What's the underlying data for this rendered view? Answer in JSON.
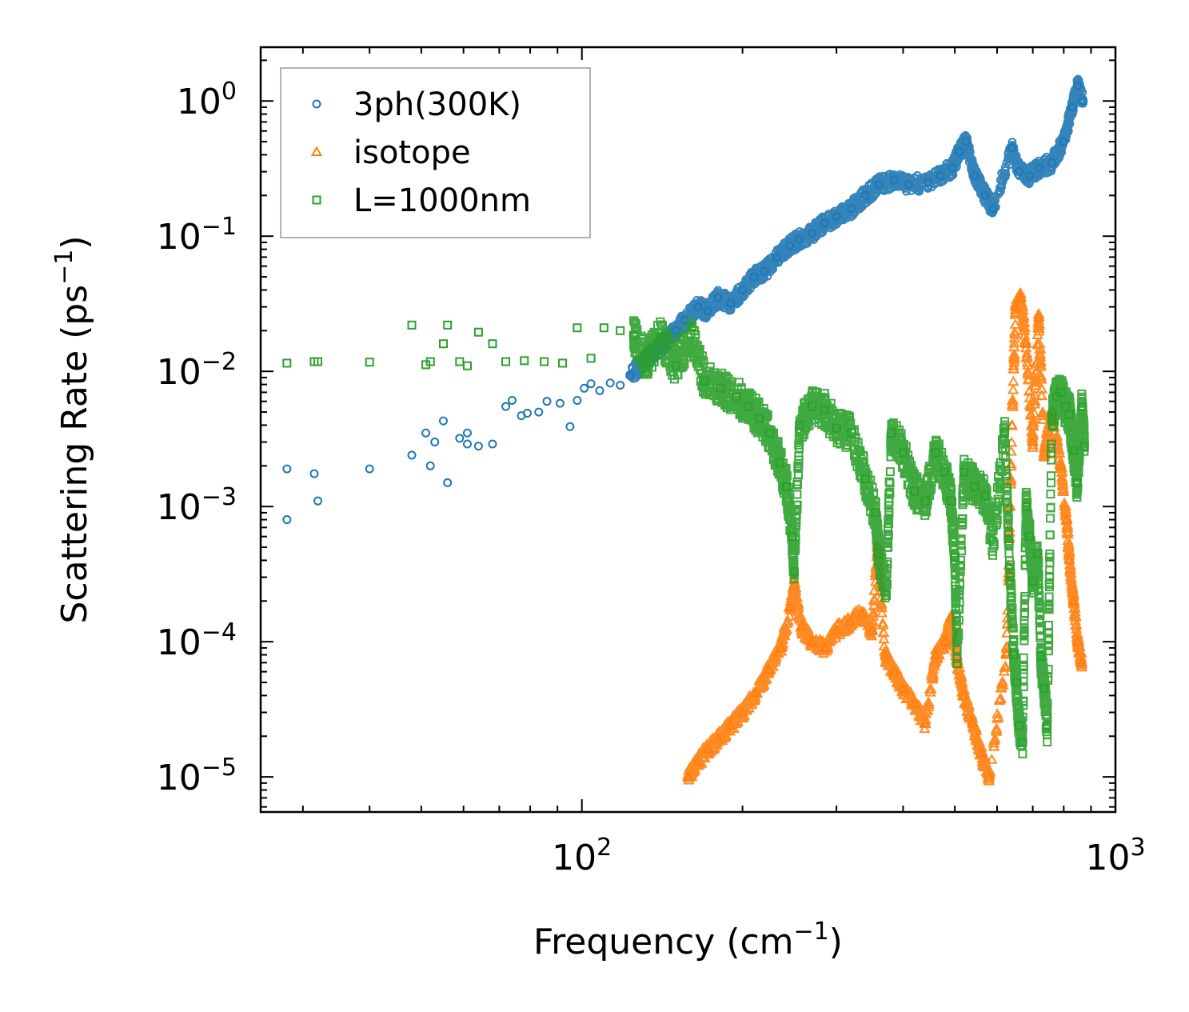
{
  "chart_data": {
    "type": "scatter",
    "xlabel": "Frequency (cm",
    "xlabel_sup": "−1",
    "xlabel_end": ")",
    "ylabel": "Scattering Rate (ps",
    "ylabel_sup": "−1",
    "ylabel_end": ")",
    "xscale": "log",
    "yscale": "log",
    "xlim": [
      25,
      1000
    ],
    "ylim": [
      5.5e-06,
      2.5
    ],
    "x_major_ticks": [
      {
        "value": 100,
        "base": "10",
        "exp": "2"
      },
      {
        "value": 1000,
        "base": "10",
        "exp": "3"
      }
    ],
    "y_major_ticks": [
      {
        "value": 1e-05,
        "base": "10",
        "exp": "−5"
      },
      {
        "value": 0.0001,
        "base": "10",
        "exp": "−4"
      },
      {
        "value": 0.001,
        "base": "10",
        "exp": "−3"
      },
      {
        "value": 0.01,
        "base": "10",
        "exp": "−2"
      },
      {
        "value": 0.1,
        "base": "10",
        "exp": "−1"
      },
      {
        "value": 1,
        "base": "10",
        "exp": "0"
      }
    ],
    "legend_position": "top-left",
    "series": [
      {
        "name": "3ph(300K)",
        "marker": "circle",
        "color": "#1f77b4",
        "points": [
          [
            28,
            0.0019
          ],
          [
            28,
            0.0008
          ],
          [
            31.5,
            0.00175
          ],
          [
            32,
            0.0011
          ],
          [
            40,
            0.0019
          ],
          [
            48,
            0.0024
          ],
          [
            51,
            0.0035
          ],
          [
            52,
            0.002
          ],
          [
            53,
            0.003
          ],
          [
            55,
            0.0043
          ],
          [
            56,
            0.0015
          ],
          [
            59,
            0.0032
          ],
          [
            61,
            0.0035
          ],
          [
            61,
            0.0029
          ],
          [
            64,
            0.0028
          ],
          [
            68,
            0.0029
          ],
          [
            72,
            0.0055
          ],
          [
            74,
            0.0061
          ],
          [
            77,
            0.0047
          ],
          [
            79,
            0.0049
          ],
          [
            83,
            0.005
          ],
          [
            86,
            0.006
          ],
          [
            91,
            0.0058
          ],
          [
            95,
            0.0039
          ],
          [
            98,
            0.0061
          ],
          [
            101,
            0.0075
          ],
          [
            104,
            0.0081
          ],
          [
            108,
            0.0072
          ],
          [
            113,
            0.0082
          ],
          [
            118,
            0.0079
          ],
          [
            123,
            0.0093
          ],
          [
            130,
            0.0115
          ],
          [
            136,
            0.0135
          ],
          [
            142,
            0.016
          ],
          [
            150,
            0.02
          ],
          [
            156,
            0.024
          ],
          [
            165,
            0.03
          ],
          [
            172,
            0.028
          ],
          [
            180,
            0.035
          ],
          [
            190,
            0.032
          ],
          [
            200,
            0.04
          ],
          [
            210,
            0.05
          ],
          [
            220,
            0.055
          ],
          [
            232,
            0.07
          ],
          [
            245,
            0.085
          ],
          [
            255,
            0.095
          ],
          [
            270,
            0.105
          ],
          [
            285,
            0.125
          ],
          [
            300,
            0.14
          ],
          [
            320,
            0.16
          ],
          [
            340,
            0.2
          ],
          [
            360,
            0.24
          ],
          [
            385,
            0.26
          ],
          [
            410,
            0.24
          ],
          [
            445,
            0.25
          ],
          [
            470,
            0.28
          ],
          [
            495,
            0.32
          ],
          [
            510,
            0.42
          ],
          [
            525,
            0.5
          ],
          [
            545,
            0.28
          ],
          [
            570,
            0.2
          ],
          [
            590,
            0.16
          ],
          [
            640,
            0.45
          ],
          [
            660,
            0.3
          ],
          [
            690,
            0.28
          ],
          [
            720,
            0.32
          ],
          [
            760,
            0.35
          ],
          [
            800,
            0.5
          ],
          [
            830,
            0.9
          ],
          [
            850,
            1.3
          ],
          [
            870,
            1.0
          ]
        ]
      },
      {
        "name": "isotope",
        "marker": "triangle",
        "color": "#ff7f0e",
        "points": [
          [
            158,
            1e-05
          ],
          [
            165,
            1.3e-05
          ],
          [
            172,
            1.6e-05
          ],
          [
            180,
            1.9e-05
          ],
          [
            190,
            2.4e-05
          ],
          [
            200,
            3e-05
          ],
          [
            212,
            4.2e-05
          ],
          [
            224,
            6.2e-05
          ],
          [
            236,
            9e-05
          ],
          [
            246,
            0.00018
          ],
          [
            250,
            0.00026
          ],
          [
            258,
            0.00013
          ],
          [
            270,
            0.0001
          ],
          [
            285,
            9e-05
          ],
          [
            300,
            0.00012
          ],
          [
            318,
            0.00014
          ],
          [
            335,
            0.00016
          ],
          [
            350,
            0.00012
          ],
          [
            358,
            0.0005
          ],
          [
            370,
            8e-05
          ],
          [
            385,
            6e-05
          ],
          [
            400,
            4.5e-05
          ],
          [
            420,
            3.5e-05
          ],
          [
            440,
            2.5e-05
          ],
          [
            460,
            8e-05
          ],
          [
            480,
            0.0001
          ],
          [
            492,
            0.00015
          ],
          [
            505,
            7e-05
          ],
          [
            520,
            4e-05
          ],
          [
            540,
            2.5e-05
          ],
          [
            560,
            1.5e-05
          ],
          [
            580,
            1e-05
          ],
          [
            625,
            8e-05
          ],
          [
            640,
            0.004
          ],
          [
            650,
            0.03
          ],
          [
            665,
            0.035
          ],
          [
            680,
            0.016
          ],
          [
            700,
            0.003
          ],
          [
            718,
            0.025
          ],
          [
            735,
            0.0025
          ],
          [
            760,
            0.005
          ],
          [
            790,
            0.002
          ],
          [
            810,
            0.0008
          ],
          [
            820,
            0.0004
          ],
          [
            835,
            0.0002
          ],
          [
            850,
            0.0001
          ],
          [
            865,
            7e-05
          ]
        ]
      },
      {
        "name": "L=1000nm",
        "marker": "square",
        "color": "#2ca02c",
        "points": [
          [
            28,
            0.0115
          ],
          [
            31.5,
            0.0118
          ],
          [
            32,
            0.0118
          ],
          [
            40,
            0.0117
          ],
          [
            48,
            0.022
          ],
          [
            51,
            0.0112
          ],
          [
            52,
            0.0118
          ],
          [
            55,
            0.016
          ],
          [
            56,
            0.022
          ],
          [
            59,
            0.0118
          ],
          [
            61,
            0.011
          ],
          [
            64,
            0.0195
          ],
          [
            68,
            0.016
          ],
          [
            72,
            0.0118
          ],
          [
            78,
            0.012
          ],
          [
            85,
            0.0118
          ],
          [
            92,
            0.0115
          ],
          [
            98,
            0.021
          ],
          [
            104,
            0.0125
          ],
          [
            110,
            0.021
          ],
          [
            118,
            0.02
          ],
          [
            125,
            0.0185
          ],
          [
            132,
            0.012
          ],
          [
            140,
            0.018
          ],
          [
            150,
            0.011
          ],
          [
            160,
            0.019
          ],
          [
            170,
            0.0085
          ],
          [
            182,
            0.0075
          ],
          [
            195,
            0.0065
          ],
          [
            205,
            0.0055
          ],
          [
            215,
            0.0045
          ],
          [
            225,
            0.0035
          ],
          [
            235,
            0.0021
          ],
          [
            242,
            0.0014
          ],
          [
            248,
            0.0006
          ],
          [
            250,
            0.00033
          ],
          [
            256,
            0.004
          ],
          [
            270,
            0.0055
          ],
          [
            285,
            0.0052
          ],
          [
            300,
            0.0038
          ],
          [
            320,
            0.0035
          ],
          [
            340,
            0.0016
          ],
          [
            355,
            0.0009
          ],
          [
            360,
            0.00045
          ],
          [
            372,
            0.00022
          ],
          [
            380,
            0.0035
          ],
          [
            400,
            0.0025
          ],
          [
            420,
            0.0013
          ],
          [
            440,
            0.0011
          ],
          [
            460,
            0.0025
          ],
          [
            478,
            0.0018
          ],
          [
            492,
            0.0011
          ],
          [
            500,
            0.00042
          ],
          [
            505,
            7.5e-05
          ],
          [
            520,
            0.0018
          ],
          [
            545,
            0.0014
          ],
          [
            570,
            0.0012
          ],
          [
            590,
            0.00055
          ],
          [
            620,
            0.0035
          ],
          [
            635,
            0.0003
          ],
          [
            645,
            8e-05
          ],
          [
            652,
            5e-05
          ],
          [
            660,
            2.4e-05
          ],
          [
            670,
            1.8e-05
          ],
          [
            680,
            0.001
          ],
          [
            690,
            0.0006
          ],
          [
            700,
            0.00028
          ],
          [
            715,
            0.00045
          ],
          [
            725,
            7.8e-05
          ],
          [
            735,
            4.5e-05
          ],
          [
            745,
            2.4e-05
          ],
          [
            760,
            0.0045
          ],
          [
            775,
            0.0065
          ],
          [
            790,
            0.007
          ],
          [
            805,
            0.0055
          ],
          [
            820,
            0.0048
          ],
          [
            835,
            0.0026
          ],
          [
            848,
            0.0015
          ],
          [
            865,
            0.0055
          ],
          [
            875,
            0.0028
          ]
        ]
      }
    ]
  }
}
